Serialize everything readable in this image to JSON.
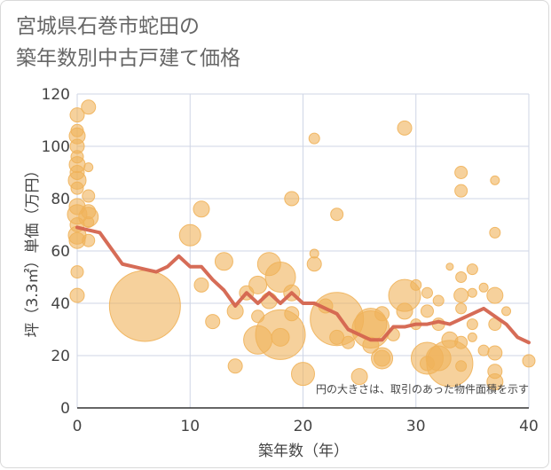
{
  "title_line1": "宮城県石巻市蛇田の",
  "title_line2": "築年数別中古戸建て価格",
  "chart_data": {
    "type": "scatter",
    "title": "宮城県石巻市蛇田の築年数別中古戸建て価格",
    "xlabel": "築年数（年）",
    "ylabel": "坪（3.3㎡）単価（万円）",
    "xlim": [
      0,
      40
    ],
    "ylim": [
      0,
      120
    ],
    "xticks": [
      0,
      10,
      20,
      30,
      40
    ],
    "yticks": [
      0,
      20,
      40,
      60,
      80,
      100,
      120
    ],
    "grid": true,
    "note": "円の大きさは、取引のあった物件面積を示す",
    "colors": {
      "bubble": "#f0b25a",
      "trend": "#d4644e",
      "grid": "#cfd6e6"
    },
    "points": [
      {
        "x": 0,
        "y": 112,
        "s": 8
      },
      {
        "x": 0,
        "y": 106,
        "s": 7
      },
      {
        "x": 0,
        "y": 104,
        "s": 9
      },
      {
        "x": 0,
        "y": 100,
        "s": 8
      },
      {
        "x": 0,
        "y": 96,
        "s": 7
      },
      {
        "x": 0,
        "y": 93,
        "s": 9
      },
      {
        "x": 0,
        "y": 90,
        "s": 8
      },
      {
        "x": 0,
        "y": 87,
        "s": 10
      },
      {
        "x": 0,
        "y": 84,
        "s": 7
      },
      {
        "x": 0,
        "y": 77,
        "s": 9
      },
      {
        "x": 0,
        "y": 74,
        "s": 11
      },
      {
        "x": 0,
        "y": 70,
        "s": 8
      },
      {
        "x": 0,
        "y": 66,
        "s": 10
      },
      {
        "x": 0,
        "y": 64,
        "s": 9
      },
      {
        "x": 0,
        "y": 52,
        "s": 7
      },
      {
        "x": 0,
        "y": 43,
        "s": 8
      },
      {
        "x": 1,
        "y": 115,
        "s": 8
      },
      {
        "x": 1,
        "y": 92,
        "s": 5
      },
      {
        "x": 1,
        "y": 81,
        "s": 7
      },
      {
        "x": 1,
        "y": 75,
        "s": 8
      },
      {
        "x": 1,
        "y": 73,
        "s": 11
      },
      {
        "x": 1,
        "y": 71,
        "s": 6
      },
      {
        "x": 1,
        "y": 64,
        "s": 7
      },
      {
        "x": 6,
        "y": 39,
        "s": 40
      },
      {
        "x": 10,
        "y": 66,
        "s": 12
      },
      {
        "x": 11,
        "y": 76,
        "s": 9
      },
      {
        "x": 11,
        "y": 47,
        "s": 8
      },
      {
        "x": 12,
        "y": 33,
        "s": 8
      },
      {
        "x": 13,
        "y": 56,
        "s": 10
      },
      {
        "x": 14,
        "y": 37,
        "s": 9
      },
      {
        "x": 14,
        "y": 16,
        "s": 8
      },
      {
        "x": 15,
        "y": 44,
        "s": 8
      },
      {
        "x": 16,
        "y": 47,
        "s": 10
      },
      {
        "x": 16,
        "y": 35,
        "s": 7
      },
      {
        "x": 16,
        "y": 26,
        "s": 16
      },
      {
        "x": 17,
        "y": 55,
        "s": 13
      },
      {
        "x": 17,
        "y": 41,
        "s": 9
      },
      {
        "x": 18,
        "y": 50,
        "s": 17
      },
      {
        "x": 18,
        "y": 28,
        "s": 28
      },
      {
        "x": 18,
        "y": 27,
        "s": 10
      },
      {
        "x": 19,
        "y": 80,
        "s": 8
      },
      {
        "x": 19,
        "y": 44,
        "s": 9
      },
      {
        "x": 19,
        "y": 36,
        "s": 8
      },
      {
        "x": 20,
        "y": 13,
        "s": 13
      },
      {
        "x": 21,
        "y": 103,
        "s": 6
      },
      {
        "x": 21,
        "y": 59,
        "s": 5
      },
      {
        "x": 21,
        "y": 55,
        "s": 8
      },
      {
        "x": 22,
        "y": 39,
        "s": 8
      },
      {
        "x": 23,
        "y": 74,
        "s": 7
      },
      {
        "x": 23,
        "y": 34,
        "s": 30
      },
      {
        "x": 23,
        "y": 27,
        "s": 8
      },
      {
        "x": 24,
        "y": 25,
        "s": 7
      },
      {
        "x": 25,
        "y": 12,
        "s": 9
      },
      {
        "x": 26,
        "y": 32,
        "s": 18
      },
      {
        "x": 26,
        "y": 30,
        "s": 21
      },
      {
        "x": 26,
        "y": 24,
        "s": 9
      },
      {
        "x": 27,
        "y": 36,
        "s": 8
      },
      {
        "x": 27,
        "y": 19,
        "s": 12
      },
      {
        "x": 27,
        "y": 19,
        "s": 9
      },
      {
        "x": 28,
        "y": 28,
        "s": 7
      },
      {
        "x": 29,
        "y": 107,
        "s": 8
      },
      {
        "x": 29,
        "y": 43,
        "s": 18
      },
      {
        "x": 29,
        "y": 37,
        "s": 9
      },
      {
        "x": 30,
        "y": 47,
        "s": 6
      },
      {
        "x": 30,
        "y": 32,
        "s": 6
      },
      {
        "x": 31,
        "y": 44,
        "s": 6
      },
      {
        "x": 31,
        "y": 37,
        "s": 7
      },
      {
        "x": 31,
        "y": 19,
        "s": 18
      },
      {
        "x": 31,
        "y": 17,
        "s": 8
      },
      {
        "x": 32,
        "y": 41,
        "s": 6
      },
      {
        "x": 32,
        "y": 32,
        "s": 7
      },
      {
        "x": 32,
        "y": 19,
        "s": 14
      },
      {
        "x": 33,
        "y": 54,
        "s": 4
      },
      {
        "x": 33,
        "y": 26,
        "s": 9
      },
      {
        "x": 33,
        "y": 17,
        "s": 26
      },
      {
        "x": 34,
        "y": 90,
        "s": 7
      },
      {
        "x": 34,
        "y": 83,
        "s": 7
      },
      {
        "x": 34,
        "y": 50,
        "s": 6
      },
      {
        "x": 34,
        "y": 43,
        "s": 8
      },
      {
        "x": 34,
        "y": 38,
        "s": 6
      },
      {
        "x": 34,
        "y": 25,
        "s": 7
      },
      {
        "x": 34,
        "y": 16,
        "s": 6
      },
      {
        "x": 35,
        "y": 53,
        "s": 6
      },
      {
        "x": 35,
        "y": 44,
        "s": 5
      },
      {
        "x": 35,
        "y": 32,
        "s": 6
      },
      {
        "x": 35,
        "y": 27,
        "s": 5
      },
      {
        "x": 36,
        "y": 46,
        "s": 5
      },
      {
        "x": 36,
        "y": 22,
        "s": 6
      },
      {
        "x": 37,
        "y": 87,
        "s": 5
      },
      {
        "x": 37,
        "y": 67,
        "s": 6
      },
      {
        "x": 37,
        "y": 43,
        "s": 9
      },
      {
        "x": 37,
        "y": 32,
        "s": 7
      },
      {
        "x": 37,
        "y": 21,
        "s": 8
      },
      {
        "x": 37,
        "y": 14,
        "s": 8
      },
      {
        "x": 37,
        "y": 10,
        "s": 9
      },
      {
        "x": 38,
        "y": 37,
        "s": 5
      },
      {
        "x": 40,
        "y": 18,
        "s": 7
      }
    ],
    "trend": {
      "x": [
        0,
        1,
        2,
        3,
        4,
        5,
        6,
        7,
        8,
        9,
        10,
        11,
        12,
        13,
        14,
        15,
        16,
        17,
        18,
        19,
        20,
        21,
        22,
        23,
        24,
        25,
        26,
        27,
        28,
        29,
        30,
        31,
        32,
        33,
        34,
        35,
        36,
        37,
        38,
        39,
        40
      ],
      "y": [
        69,
        68,
        67,
        61,
        55,
        54,
        53,
        52,
        54,
        58,
        54,
        54,
        49,
        45,
        39,
        44,
        40,
        44,
        40,
        44,
        40,
        40,
        38,
        36,
        30,
        28,
        26,
        26,
        31,
        31,
        32,
        32,
        33,
        32,
        34,
        36,
        38,
        35,
        32,
        27,
        25
      ]
    }
  }
}
